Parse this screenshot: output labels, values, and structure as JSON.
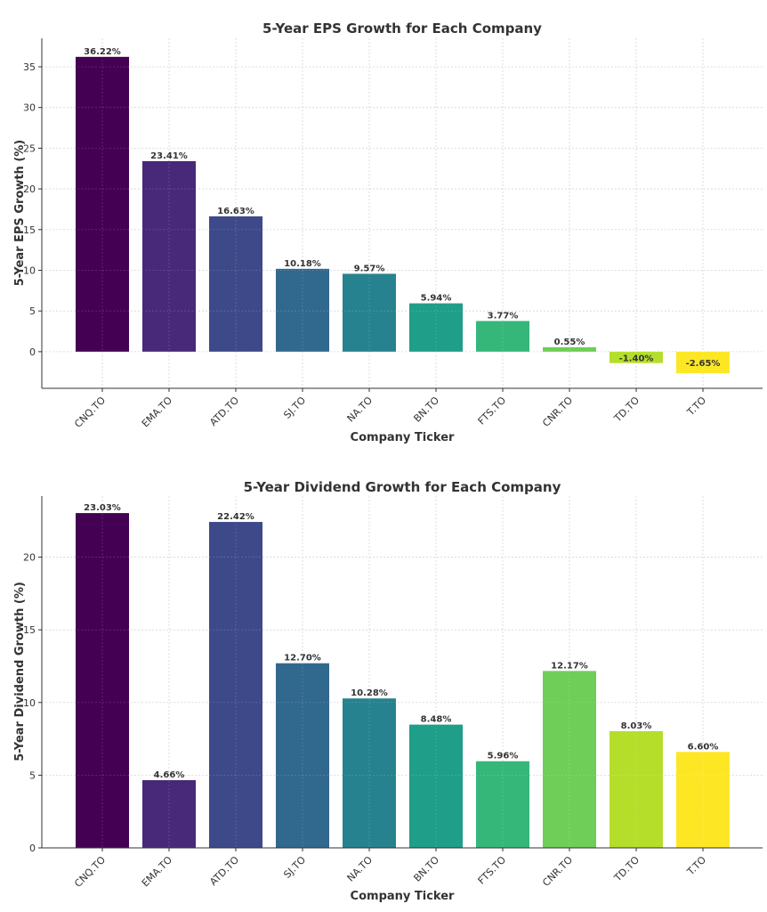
{
  "chart_data": [
    {
      "type": "bar",
      "title": "5-Year EPS Growth for Each Company",
      "xlabel": "Company Ticker",
      "ylabel": "5-Year EPS Growth (%)",
      "categories": [
        "CNQ.TO",
        "EMA.TO",
        "ATD.TO",
        "SJ.TO",
        "NA.TO",
        "BN.TO",
        "FTS.TO",
        "CNR.TO",
        "TD.TO",
        "T.TO"
      ],
      "values": [
        36.22,
        23.41,
        16.63,
        10.18,
        9.57,
        5.94,
        3.77,
        0.55,
        -1.4,
        -2.65
      ],
      "data_labels": [
        "36.22%",
        "23.41%",
        "16.63%",
        "10.18%",
        "9.57%",
        "5.94%",
        "3.77%",
        "0.55%",
        "-1.40%",
        "-2.65%"
      ],
      "colors": [
        "#440154",
        "#482878",
        "#3e4989",
        "#31688e",
        "#26828e",
        "#1f9e89",
        "#35b779",
        "#6ece58",
        "#b5de2b",
        "#fde725"
      ],
      "yticks": [
        0,
        5,
        10,
        15,
        20,
        25,
        30,
        35
      ],
      "ylim": [
        -4.5,
        38.5
      ],
      "grid": true
    },
    {
      "type": "bar",
      "title": "5-Year Dividend Growth for Each Company",
      "xlabel": "Company Ticker",
      "ylabel": "5-Year Dividend Growth (%)",
      "categories": [
        "CNQ.TO",
        "EMA.TO",
        "ATD.TO",
        "SJ.TO",
        "NA.TO",
        "BN.TO",
        "FTS.TO",
        "CNR.TO",
        "TD.TO",
        "T.TO"
      ],
      "values": [
        23.03,
        4.66,
        22.42,
        12.7,
        10.28,
        8.48,
        5.96,
        12.17,
        8.03,
        6.6
      ],
      "data_labels": [
        "23.03%",
        "4.66%",
        "22.42%",
        "12.70%",
        "10.28%",
        "8.48%",
        "5.96%",
        "12.17%",
        "8.03%",
        "6.60%"
      ],
      "colors": [
        "#440154",
        "#482878",
        "#3e4989",
        "#31688e",
        "#26828e",
        "#1f9e89",
        "#35b779",
        "#6ece58",
        "#b5de2b",
        "#fde725"
      ],
      "yticks": [
        0,
        5,
        10,
        15,
        20
      ],
      "ylim": [
        0,
        24.2
      ],
      "grid": true
    }
  ]
}
